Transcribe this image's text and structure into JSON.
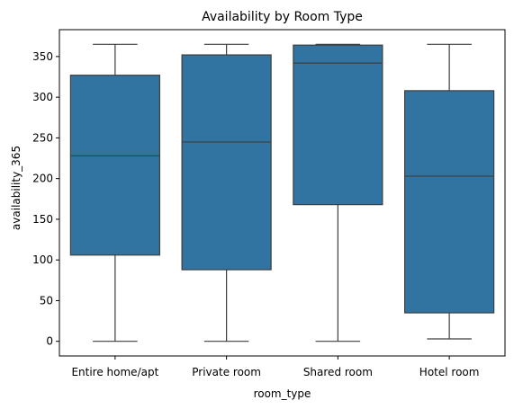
{
  "chart_data": {
    "type": "box",
    "title": "Availability by Room Type",
    "xlabel": "room_type",
    "ylabel": "availability_365",
    "ylim": [
      -18,
      383
    ],
    "yticks": [
      0,
      50,
      100,
      150,
      200,
      250,
      300,
      350
    ],
    "grid": false,
    "legend": "none",
    "box_color": "#3274a1",
    "line_color": "#3d3d3d",
    "categories": [
      "Entire home/apt",
      "Private room",
      "Shared room",
      "Hotel room"
    ],
    "boxes": [
      {
        "category": "Entire home/apt",
        "whisker_low": 0,
        "q1": 106,
        "median": 228,
        "q3": 327,
        "whisker_high": 365
      },
      {
        "category": "Private room",
        "whisker_low": 0,
        "q1": 88,
        "median": 245,
        "q3": 352,
        "whisker_high": 365
      },
      {
        "category": "Shared room",
        "whisker_low": 0,
        "q1": 168,
        "median": 342,
        "q3": 364,
        "whisker_high": 365
      },
      {
        "category": "Hotel room",
        "whisker_low": 3,
        "q1": 35,
        "median": 203,
        "q3": 308,
        "whisker_high": 365
      }
    ]
  }
}
